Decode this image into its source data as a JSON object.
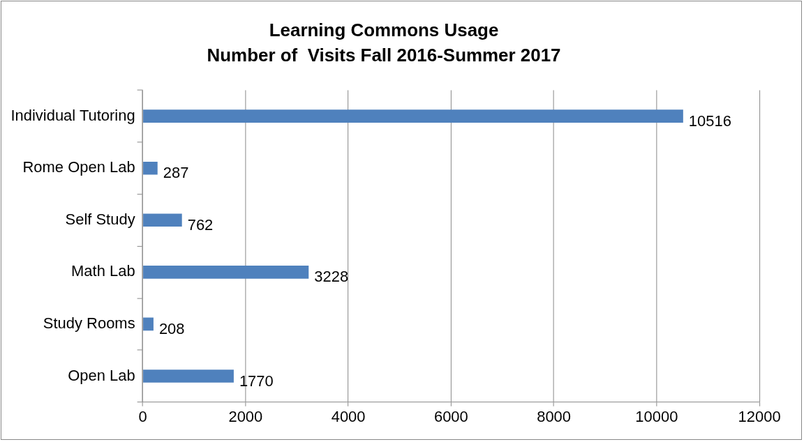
{
  "chart_data": {
    "type": "bar",
    "orientation": "horizontal",
    "title": "Learning Commons Usage\nNumber of  Visits Fall 2016-Summer 2017",
    "categories": [
      "Individual Tutoring",
      "Rome Open Lab",
      "Self Study",
      "Math Lab",
      "Study Rooms",
      "Open Lab"
    ],
    "values": [
      10516,
      287,
      762,
      3228,
      208,
      1770
    ],
    "color": "#4f81bd",
    "xlim": [
      0,
      12000
    ],
    "xticks": [
      0,
      2000,
      4000,
      6000,
      8000,
      10000,
      12000
    ],
    "grid": "x",
    "data_labels": true,
    "legend": false
  }
}
